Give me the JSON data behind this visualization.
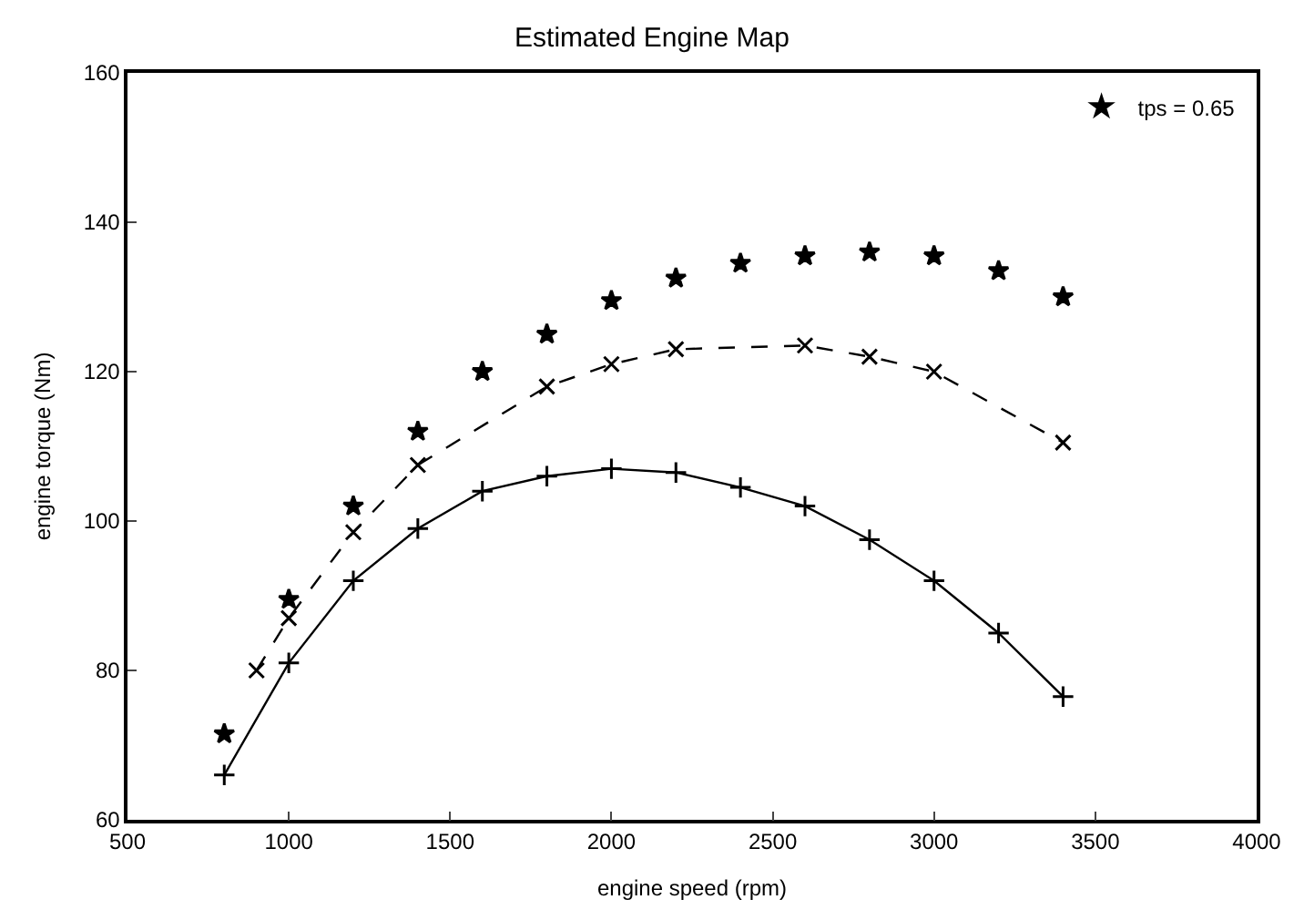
{
  "chart_data": {
    "type": "line",
    "title": "Estimated Engine Map",
    "xlabel": "engine speed (rpm)",
    "ylabel": "engine torque (Nm)",
    "xlim": [
      500,
      4000
    ],
    "xticks": [
      500,
      1000,
      1500,
      2000,
      2500,
      3000,
      3500,
      4000
    ],
    "ylim": [
      60,
      160
    ],
    "yticks": [
      60,
      80,
      100,
      120,
      140,
      160
    ],
    "legend": "top right",
    "series": [
      {
        "color": "#000000",
        "marker": "cross",
        "line_style": "solid",
        "x": [
          800,
          1000,
          1200,
          1400,
          1600,
          1800,
          2000,
          2200,
          2400,
          2600,
          2800,
          3000,
          3200,
          3400
        ],
        "values": [
          66,
          81,
          92,
          99,
          104,
          106,
          107,
          106.5,
          104.5,
          102,
          97.5,
          92,
          85,
          76.5
        ]
      },
      {
        "color": "#000000",
        "marker": "x",
        "line_style": "dashed",
        "x": [
          900,
          1000,
          1200,
          1400,
          1800,
          2000,
          2200,
          2600,
          2800,
          3000,
          3400
        ],
        "values": [
          80,
          87,
          98.5,
          107.5,
          118,
          121,
          123,
          123.5,
          122,
          120,
          110.5
        ]
      },
      {
        "name": "tps = 0.65",
        "color": "#000000",
        "type": "scatter",
        "marker": "star",
        "x": [
          800,
          1000,
          1200,
          1400,
          1600,
          1800,
          2000,
          2200,
          2400,
          2600,
          2800,
          3000,
          3200,
          3400
        ],
        "values": [
          71.5,
          89.5,
          102,
          112,
          120,
          125,
          129.5,
          132.5,
          134.5,
          135.5,
          136,
          135.5,
          133.5,
          130
        ]
      }
    ]
  }
}
